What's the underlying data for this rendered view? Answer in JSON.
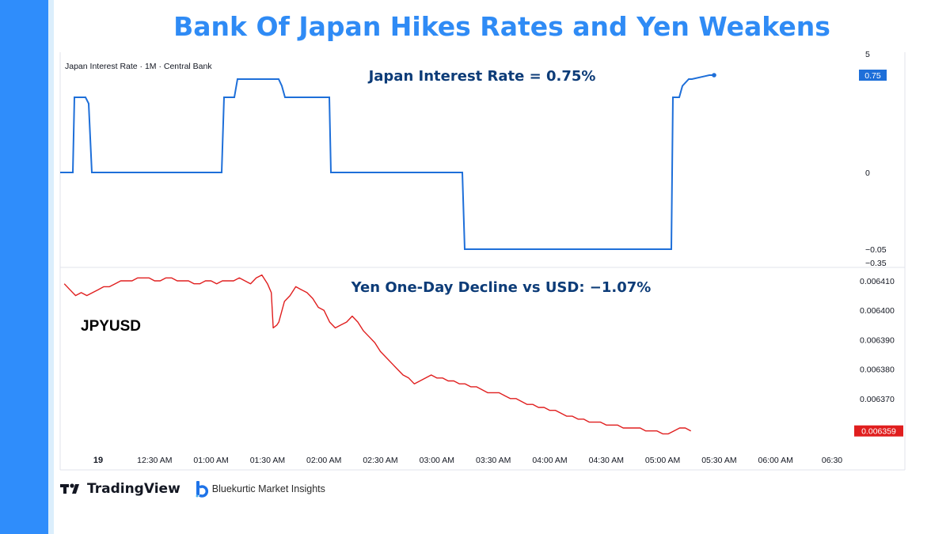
{
  "page": {
    "title": "Bank Of Japan Hikes Rates and Yen Weakens",
    "footer": {
      "tradingview_label": "TradingView",
      "brand_label": "Bluekurtic Market Insights"
    }
  },
  "colors": {
    "title": "#2f8bf5",
    "sidebar": "#2f8dfb",
    "rate_line": "#1e6fd9",
    "yen_line": "#e01e1e",
    "annotation": "#0d3c78"
  },
  "chart_data": [
    {
      "type": "line",
      "name": "interest-rate-panel",
      "legend_label": "Japan Interest Rate · 1M · Central Bank",
      "annotation": "Japan Interest Rate = 0.75%",
      "last_value_label": "0.75",
      "y_tick_labels": [
        "5",
        "0",
        "−0.05",
        "−0.35"
      ],
      "series": [
        {
          "x": [
            "00:00",
            "00:12",
            "00:14",
            "00:20",
            "00:22",
            "00:24",
            "01:05",
            "01:06",
            "01:10",
            "01:12",
            "01:30",
            "01:32",
            "01:35",
            "01:40",
            "01:42",
            "01:52",
            "01:54",
            "02:20",
            "02:22",
            "03:00",
            "03:02",
            "03:40",
            "03:42",
            "03:45",
            "03:48",
            "03:50",
            "03:54",
            "04:00",
            "04:04"
          ],
          "values": [
            0,
            0,
            0.6,
            0.6,
            0.55,
            0,
            0,
            0.6,
            0.6,
            0.68,
            0.68,
            0.65,
            0.6,
            0.6,
            0,
            0,
            -0.05,
            -0.05,
            -0.05,
            -0.05,
            0.6,
            0.6,
            0.65,
            0.68,
            0.68,
            0.75,
            0.75,
            0.75,
            0.75
          ]
        }
      ]
    },
    {
      "type": "line",
      "name": "jpyusd-panel",
      "series_label": "JPYUSD",
      "annotation": "Yen One-Day Decline vs USD: −1.07%",
      "last_value_label": "0.006359",
      "y_tick_labels": [
        "0.006410",
        "0.006400",
        "0.006390",
        "0.006380",
        "0.006370"
      ],
      "y_ticks": [
        0.00641,
        0.0064,
        0.00639,
        0.00638,
        0.00637
      ],
      "x_tick_labels": [
        "19",
        "12:30 AM",
        "01:00 AM",
        "01:30 AM",
        "02:00 AM",
        "02:30 AM",
        "03:00 AM",
        "03:30 AM",
        "04:00 AM",
        "04:30 AM",
        "05:00 AM",
        "05:30 AM",
        "06:00 AM",
        "06:30"
      ],
      "x_ticks_minutes": [
        0,
        30,
        60,
        90,
        120,
        150,
        180,
        210,
        240,
        270,
        300,
        330,
        360,
        390
      ],
      "series": [
        {
          "minutes": [
            -18,
            -15,
            -12,
            -9,
            -6,
            -3,
            0,
            3,
            6,
            9,
            12,
            15,
            18,
            21,
            24,
            27,
            30,
            33,
            36,
            39,
            42,
            45,
            48,
            51,
            54,
            57,
            60,
            63,
            66,
            69,
            72,
            75,
            78,
            81,
            84,
            87,
            90,
            92,
            93,
            95,
            96,
            99,
            102,
            105,
            108,
            111,
            114,
            117,
            120,
            123,
            126,
            129,
            132,
            135,
            138,
            141,
            144,
            147,
            150,
            153,
            156,
            159,
            162,
            165,
            168,
            171,
            174,
            177,
            180,
            183,
            186,
            189,
            192,
            195,
            198,
            201,
            204,
            207,
            210,
            213,
            216,
            219,
            222,
            225,
            228,
            231,
            234,
            237,
            240,
            243,
            246,
            249,
            252,
            255,
            258,
            261,
            264,
            267,
            270,
            273,
            276,
            279,
            282,
            285,
            288,
            291,
            294,
            297,
            300,
            303,
            306,
            309,
            312,
            315
          ],
          "values": [
            0.006409,
            0.006407,
            0.006405,
            0.006406,
            0.006405,
            0.006406,
            0.006407,
            0.006408,
            0.006408,
            0.006409,
            0.00641,
            0.00641,
            0.00641,
            0.006411,
            0.006411,
            0.006411,
            0.00641,
            0.00641,
            0.006411,
            0.006411,
            0.00641,
            0.00641,
            0.00641,
            0.006409,
            0.006409,
            0.00641,
            0.00641,
            0.006409,
            0.00641,
            0.00641,
            0.00641,
            0.006411,
            0.00641,
            0.006409,
            0.006411,
            0.006412,
            0.006409,
            0.006406,
            0.006394,
            0.006395,
            0.006396,
            0.006403,
            0.006405,
            0.006408,
            0.006407,
            0.006406,
            0.006404,
            0.006401,
            0.0064,
            0.006396,
            0.006394,
            0.006395,
            0.006396,
            0.006398,
            0.006396,
            0.006393,
            0.006391,
            0.006389,
            0.006386,
            0.006384,
            0.006382,
            0.00638,
            0.006378,
            0.006377,
            0.006375,
            0.006376,
            0.006377,
            0.006378,
            0.006377,
            0.006377,
            0.006376,
            0.006376,
            0.006375,
            0.006375,
            0.006374,
            0.006374,
            0.006373,
            0.006372,
            0.006372,
            0.006372,
            0.006371,
            0.00637,
            0.00637,
            0.006369,
            0.006368,
            0.006368,
            0.006367,
            0.006367,
            0.006366,
            0.006366,
            0.006365,
            0.006364,
            0.006364,
            0.006363,
            0.006363,
            0.006362,
            0.006362,
            0.006362,
            0.006361,
            0.006361,
            0.006361,
            0.00636,
            0.00636,
            0.00636,
            0.00636,
            0.006359,
            0.006359,
            0.006359,
            0.006358,
            0.006358,
            0.006359,
            0.00636,
            0.00636,
            0.006359
          ]
        }
      ]
    }
  ]
}
